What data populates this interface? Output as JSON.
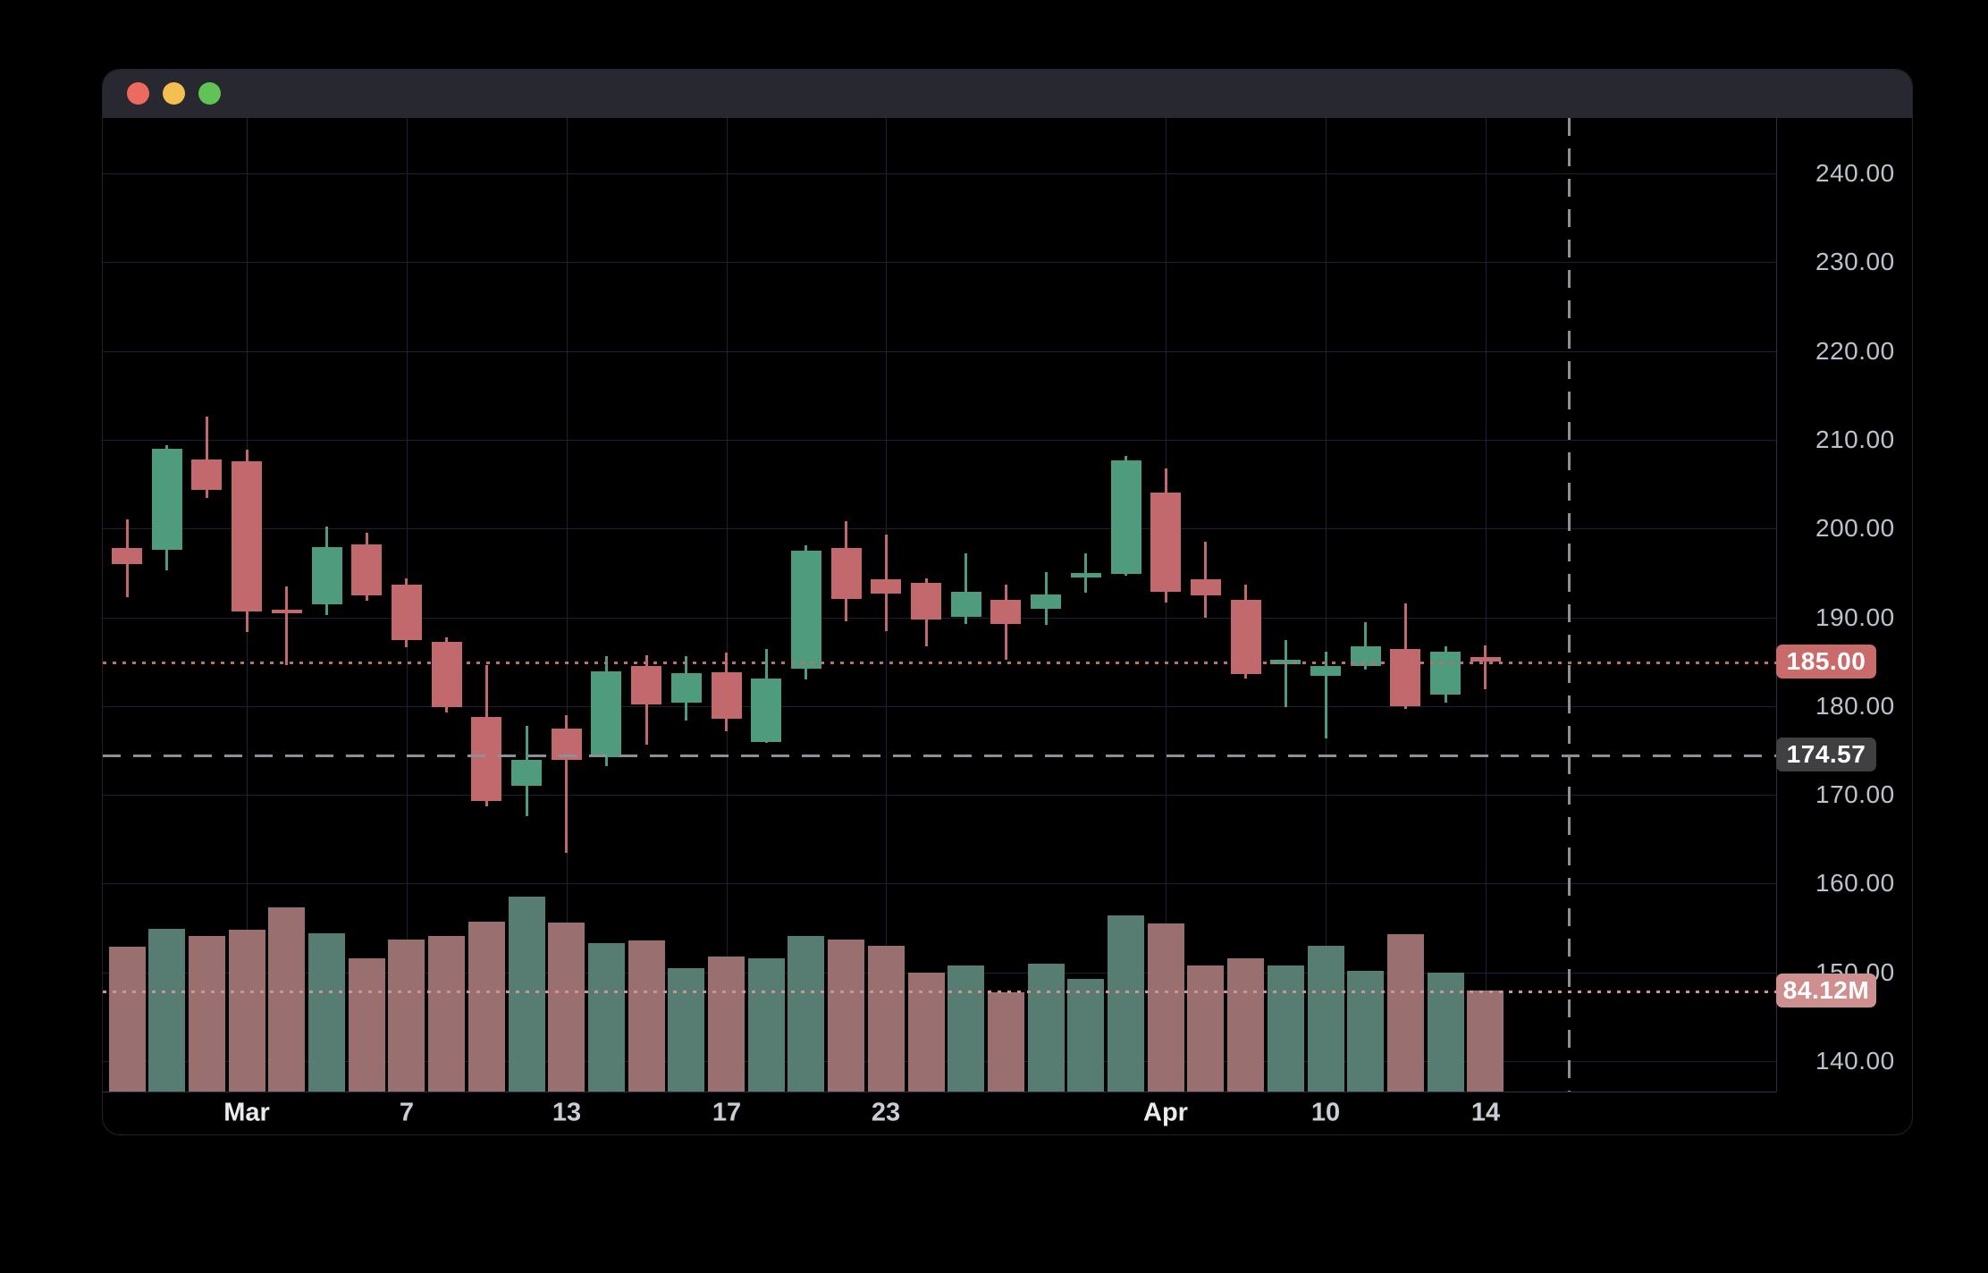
{
  "window": {
    "titlebar": {
      "buttons": [
        {
          "name": "close",
          "color": "#ed6a5f"
        },
        {
          "name": "minimize",
          "color": "#f4bf50"
        },
        {
          "name": "zoom",
          "color": "#61c355"
        }
      ],
      "background": "#282831"
    }
  },
  "colors": {
    "background": "#000000",
    "up_candle": "#4f9b7e",
    "down_candle": "#c2696d",
    "up_volume": "#577d72",
    "down_volume": "#9a6f70",
    "grid": "#1d1f33",
    "axis_border": "#2e3048",
    "axis_text": "#bcc2cc",
    "date_text": "#c9ced6",
    "month_text": "#e9ebee",
    "last_price_line": "#bb6f6f",
    "last_volume_line": "#cf9292",
    "crosshair_line": "#8e9096",
    "last_price_badge_bg": "#c96b6b",
    "crosshair_badge_bg": "#404043",
    "last_volume_badge_bg": "#cf8f8f"
  },
  "price_axis": {
    "labels": [
      "240.00",
      "230.00",
      "220.00",
      "210.00",
      "200.00",
      "190.00",
      "180.00",
      "170.00",
      "160.00",
      "150.00",
      "140.00"
    ],
    "values": [
      240,
      230,
      220,
      210,
      200,
      190,
      180,
      170,
      160,
      150,
      140
    ]
  },
  "time_axis": {
    "labels": [
      {
        "text": "Mar",
        "candle_index": 3,
        "month": true
      },
      {
        "text": "7",
        "candle_index": 7,
        "month": false
      },
      {
        "text": "13",
        "candle_index": 11,
        "month": false
      },
      {
        "text": "17",
        "candle_index": 15,
        "month": false
      },
      {
        "text": "23",
        "candle_index": 19,
        "month": false
      },
      {
        "text": "Apr",
        "candle_index": 26,
        "month": true
      },
      {
        "text": "10",
        "candle_index": 30,
        "month": false
      },
      {
        "text": "14",
        "candle_index": 34,
        "month": false
      }
    ]
  },
  "overlays": {
    "last_price": {
      "value": 185.0,
      "label": "185.00"
    },
    "crosshair": {
      "price": 174.57,
      "price_label": "174.57"
    },
    "last_volume": {
      "millions": 84.12,
      "label": "84.12M"
    }
  },
  "chart_data": {
    "type": "candlestick",
    "title": "",
    "xlabel": "",
    "ylabel": "",
    "legend": "none",
    "grid": true,
    "visible_price_range": [
      136.6,
      246.2
    ],
    "volume_unit": "millions of shares",
    "x_tick_labels": [
      "Mar",
      "7",
      "13",
      "17",
      "23",
      "Apr",
      "10",
      "14"
    ],
    "candles": [
      {
        "o": 197.8,
        "h": 201.0,
        "l": 192.2,
        "c": 196.0,
        "v": 121
      },
      {
        "o": 197.6,
        "h": 209.4,
        "l": 195.3,
        "c": 209.0,
        "v": 136
      },
      {
        "o": 207.8,
        "h": 212.6,
        "l": 203.4,
        "c": 204.4,
        "v": 130
      },
      {
        "o": 207.6,
        "h": 208.9,
        "l": 188.4,
        "c": 190.7,
        "v": 135
      },
      {
        "o": 190.9,
        "h": 193.5,
        "l": 184.6,
        "c": 190.5,
        "v": 154
      },
      {
        "o": 191.5,
        "h": 200.2,
        "l": 190.2,
        "c": 197.9,
        "v": 132
      },
      {
        "o": 198.2,
        "h": 199.5,
        "l": 191.8,
        "c": 192.5,
        "v": 111
      },
      {
        "o": 193.7,
        "h": 194.4,
        "l": 186.6,
        "c": 187.5,
        "v": 127
      },
      {
        "o": 187.2,
        "h": 187.7,
        "l": 179.2,
        "c": 179.8,
        "v": 130
      },
      {
        "o": 178.8,
        "h": 184.6,
        "l": 168.7,
        "c": 169.3,
        "v": 142
      },
      {
        "o": 171.0,
        "h": 177.8,
        "l": 167.6,
        "c": 173.9,
        "v": 163
      },
      {
        "o": 177.5,
        "h": 179.0,
        "l": 163.5,
        "c": 174.0,
        "v": 141
      },
      {
        "o": 174.2,
        "h": 185.6,
        "l": 173.2,
        "c": 183.9,
        "v": 124
      },
      {
        "o": 184.5,
        "h": 185.7,
        "l": 175.6,
        "c": 180.2,
        "v": 126
      },
      {
        "o": 180.4,
        "h": 185.6,
        "l": 178.3,
        "c": 183.7,
        "v": 103
      },
      {
        "o": 183.8,
        "h": 186.0,
        "l": 177.1,
        "c": 178.6,
        "v": 113
      },
      {
        "o": 175.9,
        "h": 186.4,
        "l": 175.8,
        "c": 183.1,
        "v": 111
      },
      {
        "o": 184.2,
        "h": 198.1,
        "l": 183.0,
        "c": 197.5,
        "v": 130
      },
      {
        "o": 197.8,
        "h": 200.8,
        "l": 189.5,
        "c": 192.1,
        "v": 127
      },
      {
        "o": 194.3,
        "h": 199.3,
        "l": 188.4,
        "c": 192.7,
        "v": 122
      },
      {
        "o": 193.9,
        "h": 194.4,
        "l": 186.7,
        "c": 189.8,
        "v": 99
      },
      {
        "o": 190.1,
        "h": 197.2,
        "l": 189.2,
        "c": 192.9,
        "v": 105
      },
      {
        "o": 192.0,
        "h": 193.7,
        "l": 185.2,
        "c": 189.3,
        "v": 83
      },
      {
        "o": 191.0,
        "h": 195.1,
        "l": 189.2,
        "c": 192.6,
        "v": 107
      },
      {
        "o": 194.5,
        "h": 197.2,
        "l": 192.8,
        "c": 195.0,
        "v": 94
      },
      {
        "o": 194.9,
        "h": 208.2,
        "l": 194.7,
        "c": 207.7,
        "v": 147
      },
      {
        "o": 204.0,
        "h": 206.8,
        "l": 191.7,
        "c": 192.8,
        "v": 140
      },
      {
        "o": 194.3,
        "h": 198.5,
        "l": 189.9,
        "c": 192.5,
        "v": 105
      },
      {
        "o": 192.0,
        "h": 193.7,
        "l": 183.1,
        "c": 183.6,
        "v": 111
      },
      {
        "o": 184.7,
        "h": 187.4,
        "l": 179.8,
        "c": 185.2,
        "v": 105
      },
      {
        "o": 183.4,
        "h": 186.1,
        "l": 176.3,
        "c": 184.5,
        "v": 122
      },
      {
        "o": 184.5,
        "h": 189.4,
        "l": 184.1,
        "c": 186.7,
        "v": 101
      },
      {
        "o": 186.4,
        "h": 191.6,
        "l": 179.7,
        "c": 180.0,
        "v": 131
      },
      {
        "o": 181.3,
        "h": 186.7,
        "l": 180.4,
        "c": 186.1,
        "v": 99
      },
      {
        "o": 185.5,
        "h": 186.8,
        "l": 181.9,
        "c": 185.0,
        "v": 84.12
      }
    ]
  }
}
